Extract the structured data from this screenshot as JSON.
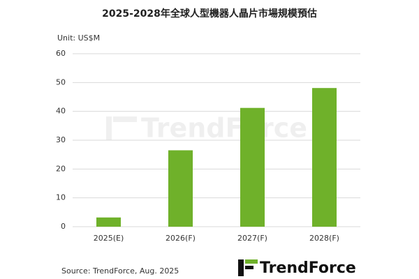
{
  "chart_data": {
    "type": "bar",
    "title": "2025-2028年全球人型機器人晶片市場規模預估",
    "unit_label": "Unit: US$M",
    "categories": [
      "2025(E)",
      "2026(F)",
      "2027(F)",
      "2028(F)"
    ],
    "values": [
      3.2,
      26.5,
      41.2,
      48.1
    ],
    "color": "#6fb12a",
    "ylim": [
      0,
      60
    ],
    "yticks": [
      0,
      10,
      20,
      30,
      40,
      50,
      60
    ],
    "grid": true,
    "source": "Source: TrendForce, Aug. 2025",
    "logo": "TrendForce"
  }
}
